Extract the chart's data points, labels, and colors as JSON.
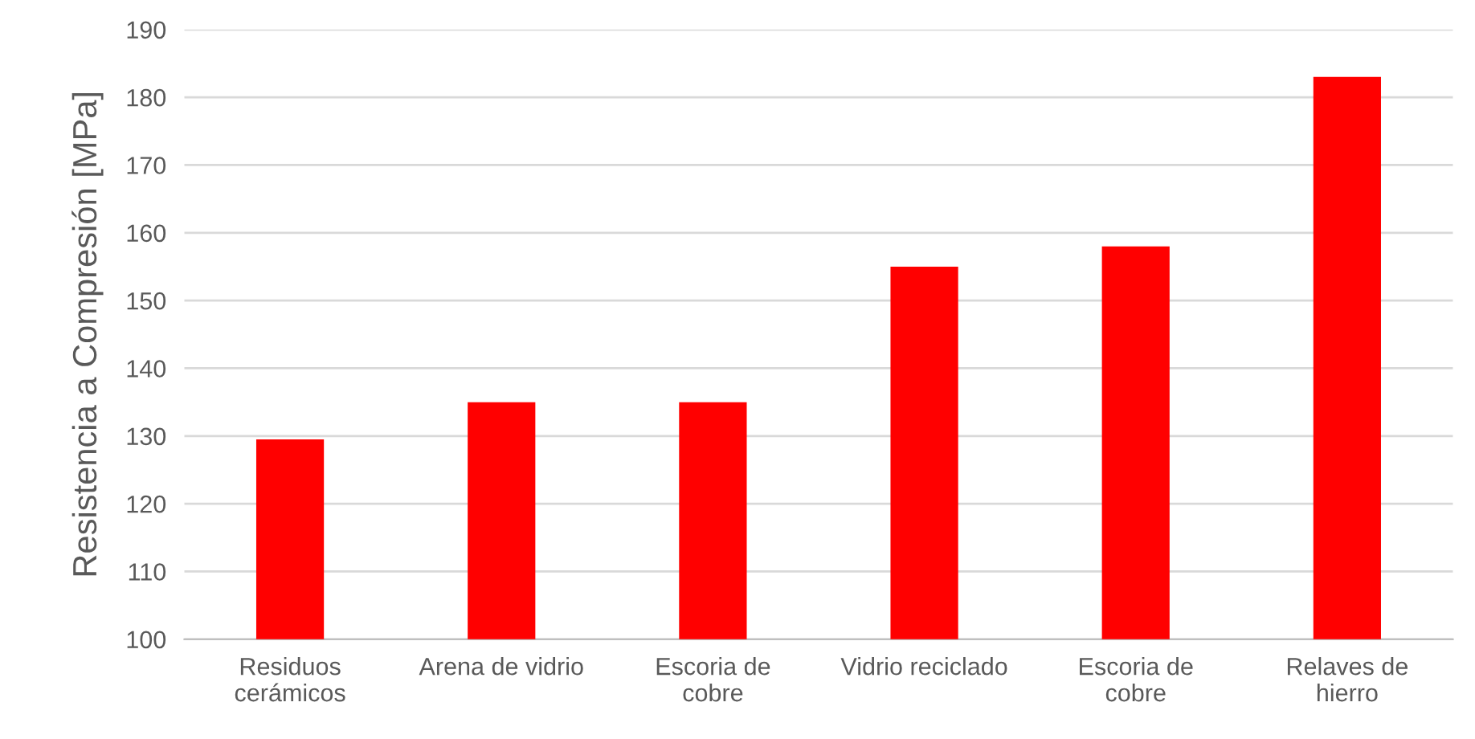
{
  "chart_data": {
    "type": "bar",
    "ylabel": "Resistencia a Compresión [MPa]",
    "categories": [
      "Residuos\ncerámicos",
      "Arena de vidrio",
      "Escoria de\ncobre",
      "Vidrio reciclado",
      "Escoria de\ncobre",
      "Relaves de\nhierro"
    ],
    "values": [
      129.5,
      135,
      135,
      155,
      158,
      183
    ],
    "color": "#ff0000",
    "ylim": [
      100,
      190
    ],
    "yticks": [
      100,
      110,
      120,
      130,
      140,
      150,
      160,
      170,
      180,
      190
    ],
    "grid": "y",
    "legend": false
  }
}
